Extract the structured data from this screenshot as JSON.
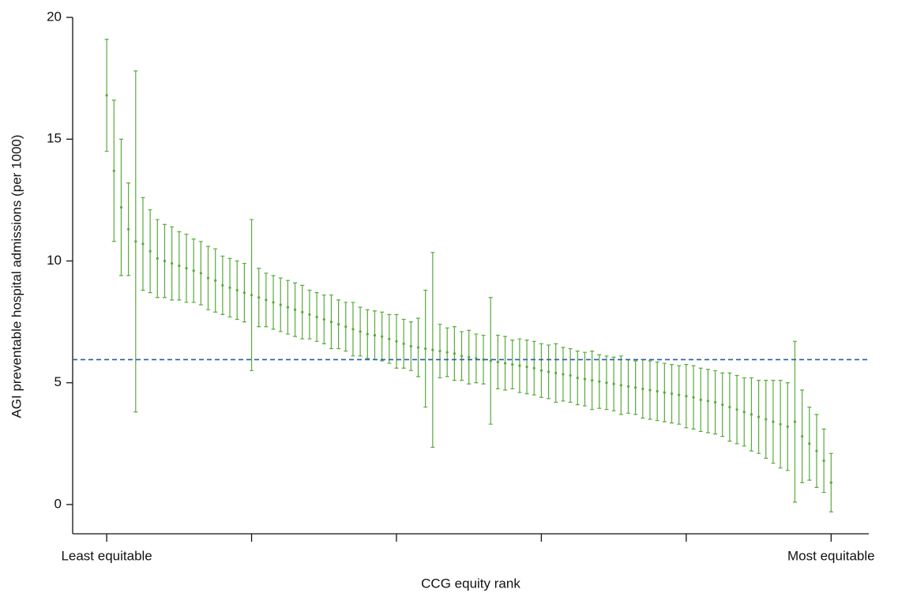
{
  "chart_data": {
    "type": "errorbar",
    "xlabel": "CCG equity rank",
    "ylabel": "AGI preventable hospital admissions (per 1000)",
    "color": "#5aaa3c",
    "reference_line": 5.95,
    "reference_color": "#2a5caa",
    "xlim": [
      -3.7,
      106.2
    ],
    "xticks": [
      {
        "value": 1,
        "label": "Least equitable"
      },
      {
        "value": 21,
        "label": null
      },
      {
        "value": 41,
        "label": null
      },
      {
        "value": 61,
        "label": null
      },
      {
        "value": 81,
        "label": null
      },
      {
        "value": 101,
        "label": "Most equitable"
      }
    ],
    "ylim": [
      -1.2,
      20
    ],
    "yticks": [
      0,
      5,
      10,
      15,
      20
    ],
    "x": [
      1,
      2,
      3,
      4,
      5,
      6,
      7,
      8,
      9,
      10,
      11,
      12,
      13,
      14,
      15,
      16,
      17,
      18,
      19,
      20,
      21,
      22,
      23,
      24,
      25,
      26,
      27,
      28,
      29,
      30,
      31,
      32,
      33,
      34,
      35,
      36,
      37,
      38,
      39,
      40,
      41,
      42,
      43,
      44,
      45,
      46,
      47,
      48,
      49,
      50,
      51,
      52,
      53,
      54,
      55,
      56,
      57,
      58,
      59,
      60,
      61,
      62,
      63,
      64,
      65,
      66,
      67,
      68,
      69,
      70,
      71,
      72,
      73,
      74,
      75,
      76,
      77,
      78,
      79,
      80,
      81,
      82,
      83,
      84,
      85,
      86,
      87,
      88,
      89,
      90,
      91,
      92,
      93,
      94,
      95,
      96,
      97,
      98,
      99,
      100,
      101
    ],
    "values": [
      16.8,
      13.7,
      12.2,
      11.3,
      10.8,
      10.7,
      10.4,
      10.1,
      10.0,
      9.9,
      9.8,
      9.7,
      9.6,
      9.5,
      9.3,
      9.2,
      9.0,
      8.9,
      8.8,
      8.7,
      8.6,
      8.5,
      8.4,
      8.3,
      8.2,
      8.1,
      8.0,
      7.9,
      7.8,
      7.7,
      7.6,
      7.5,
      7.4,
      7.3,
      7.2,
      7.1,
      7.0,
      6.95,
      6.9,
      6.8,
      6.7,
      6.6,
      6.5,
      6.45,
      6.4,
      6.35,
      6.3,
      6.25,
      6.2,
      6.1,
      6.05,
      6.0,
      5.95,
      5.9,
      5.85,
      5.8,
      5.75,
      5.7,
      5.65,
      5.6,
      5.5,
      5.45,
      5.4,
      5.35,
      5.3,
      5.2,
      5.15,
      5.1,
      5.05,
      5.0,
      4.95,
      4.9,
      4.85,
      4.8,
      4.75,
      4.7,
      4.65,
      4.6,
      4.55,
      4.5,
      4.45,
      4.4,
      4.3,
      4.25,
      4.2,
      4.1,
      4.0,
      3.9,
      3.8,
      3.7,
      3.6,
      3.5,
      3.4,
      3.3,
      3.2,
      3.4,
      2.8,
      2.5,
      2.2,
      1.8,
      0.9
    ],
    "errors": [
      2.3,
      2.9,
      2.8,
      1.9,
      7.0,
      1.9,
      1.7,
      1.6,
      1.5,
      1.5,
      1.4,
      1.4,
      1.3,
      1.3,
      1.3,
      1.3,
      1.2,
      1.2,
      1.2,
      1.2,
      3.1,
      1.2,
      1.1,
      1.1,
      1.1,
      1.1,
      1.1,
      1.1,
      1.0,
      1.0,
      1.0,
      1.1,
      1.0,
      1.0,
      1.1,
      1.0,
      1.0,
      1.0,
      1.0,
      1.0,
      1.1,
      1.0,
      1.0,
      1.2,
      2.4,
      4.0,
      1.1,
      1.0,
      1.1,
      1.0,
      1.1,
      1.0,
      1.0,
      2.6,
      1.1,
      1.1,
      1.0,
      1.1,
      1.1,
      1.1,
      1.1,
      1.1,
      1.2,
      1.1,
      1.1,
      1.1,
      1.1,
      1.2,
      1.1,
      1.1,
      1.1,
      1.2,
      1.1,
      1.1,
      1.2,
      1.2,
      1.2,
      1.2,
      1.2,
      1.2,
      1.3,
      1.3,
      1.3,
      1.3,
      1.3,
      1.3,
      1.4,
      1.4,
      1.4,
      1.5,
      1.5,
      1.6,
      1.7,
      1.8,
      1.8,
      3.3,
      1.9,
      1.5,
      1.5,
      1.3,
      1.2
    ]
  }
}
